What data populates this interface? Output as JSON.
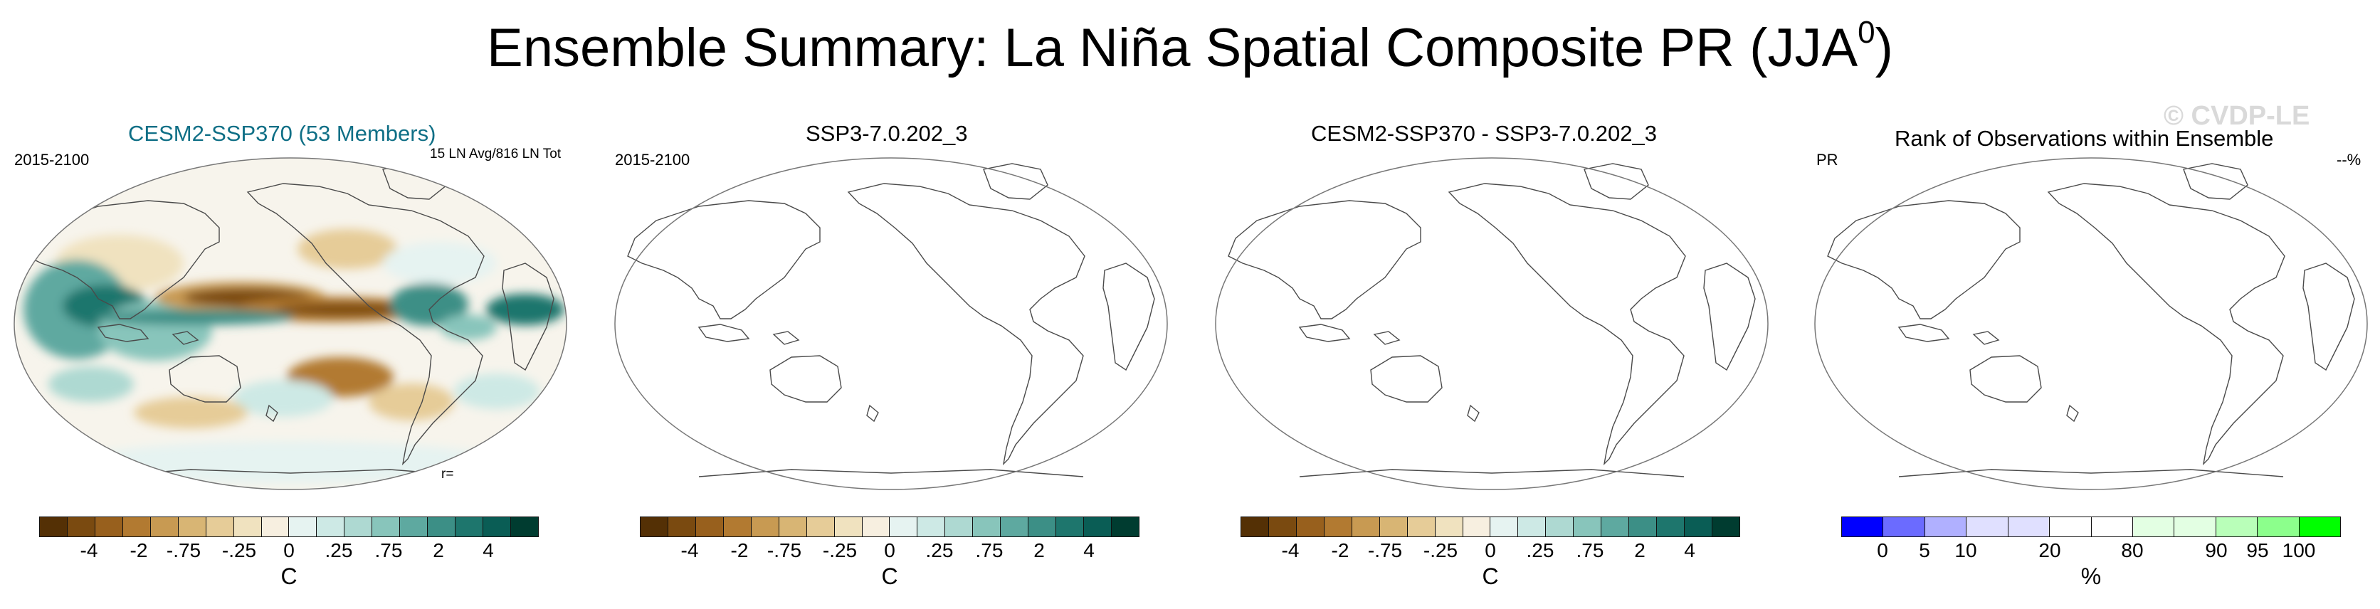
{
  "title": {
    "main": "Ensemble Summary: La Niña Spatial Composite PR (JJA",
    "superscript": "0",
    "close": ")"
  },
  "watermark": "© CVDP-LE",
  "panels": [
    {
      "title": "CESM2-SSP370 (53 Members)",
      "left": "2015-2100",
      "right": "15 LN Avg/816 LN Tot",
      "bottom": "r="
    },
    {
      "title": "SSP3-7.0.202_3",
      "left": "2015-2100",
      "right": "",
      "bottom": ""
    },
    {
      "title": "CESM2-SSP370 - SSP3-7.0.202_3",
      "left": "",
      "right": "",
      "bottom": ""
    },
    {
      "title": "Rank of Observations within Ensemble",
      "left": "PR",
      "right": "--%",
      "bottom": ""
    }
  ],
  "colorbars": {
    "diverging": {
      "colors": [
        "#543005",
        "#7a4a10",
        "#98601d",
        "#b27a31",
        "#c89a52",
        "#d8b574",
        "#e6cc98",
        "#f0e2bf",
        "#f7efe0",
        "#e6f3f1",
        "#cde9e5",
        "#aed9d2",
        "#88c5bb",
        "#5ea9a0",
        "#3c8f86",
        "#1e766d",
        "#0a5d55",
        "#003c30"
      ],
      "labels": [
        "-4",
        "-2",
        "-.75",
        "-.25",
        "0",
        ".25",
        ".75",
        "2",
        "4"
      ],
      "unit": "C"
    },
    "rank": {
      "colors": [
        "#0000ff",
        "#6b6bff",
        "#b0b0ff",
        "#e0e0ff",
        "#e0e0ff",
        "#ffffff",
        "#ffffff",
        "#e3ffe3",
        "#e3ffe3",
        "#b9ffb9",
        "#8cff8c",
        "#00ff00"
      ],
      "labels": [
        "0",
        "5",
        "10",
        "20",
        "80",
        "90",
        "95",
        "100"
      ],
      "unit": "%"
    }
  }
}
